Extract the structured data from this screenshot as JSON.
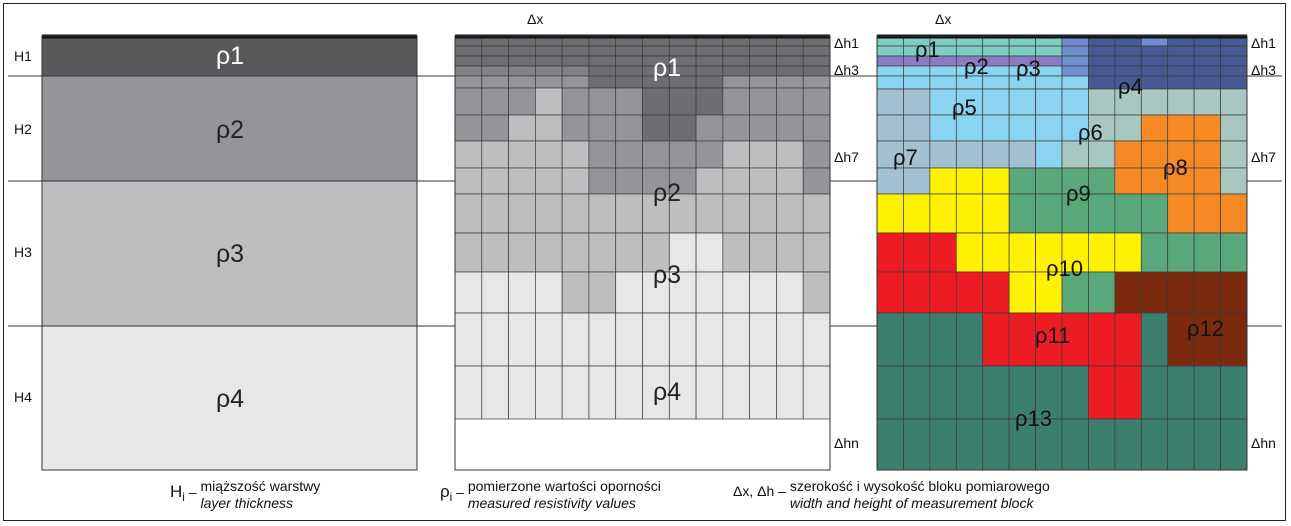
{
  "left_panel": {
    "layer_labels": [
      "H1",
      "H2",
      "H3",
      "H4"
    ],
    "layers": [
      {
        "label": "ρ1",
        "color": "#58595b"
      },
      {
        "label": "ρ2",
        "color": "#939598"
      },
      {
        "label": "ρ3",
        "color": "#bcbec0"
      },
      {
        "label": "ρ4",
        "color": "#e6e7e8"
      }
    ]
  },
  "middle_panel": {
    "top_label": "Δx",
    "right_labels": [
      "Δh1",
      "Δh3",
      "Δh7",
      "Δhn"
    ],
    "value_labels": [
      "ρ1",
      "ρ2",
      "ρ3",
      "ρ4"
    ],
    "palette": {
      "1": "#58595b",
      "2": "#939598",
      "3": "#bcbec0",
      "4": "#e6e7e8",
      "5": "#6d6e71",
      "6": "#808285"
    },
    "grid": [
      "55555555555555",
      "55555555555555",
      "55555555555555",
      "66666555555555",
      "22222555552222",
      "22232225552222",
      "22332225522222",
      "33333222223332",
      "33333222233332",
      "33333333333333",
      "33333333443333",
      "44443344444443",
      "44444444444444",
      "44444444444444"
    ]
  },
  "right_panel": {
    "top_label": "Δx",
    "left_labels": [
      "Δh1",
      "Δh3",
      "Δh7",
      "Δhn"
    ],
    "right_labels": [
      "Δh1",
      "Δh3",
      "Δh7",
      "Δhn"
    ],
    "region_labels": [
      "ρ1",
      "ρ2",
      "ρ3",
      "ρ4",
      "ρ5",
      "ρ6",
      "ρ7",
      "ρ8",
      "ρ9",
      "ρ10",
      "ρ11",
      "ρ12",
      "ρ13"
    ],
    "palette": {
      "A": "#7ecdc3",
      "B": "#8a7cc0",
      "C": "#6f8fd0",
      "D": "#485a94",
      "E": "#8ad4f2",
      "F": "#a7c7c0",
      "G": "#a3c1d3",
      "H": "#f58a25",
      "Y": "#fff200",
      "J": "#58a87a",
      "R": "#ed1c24",
      "K": "#7b2a0e",
      "T": "#3d7f6e"
    },
    "grid": [
      "AAAAAAACDDCDDD",
      "AAAAAAACDDDDDD",
      "BBBBBBBCDDDDDD",
      "EEEEEEECDDDDDD",
      "EEEEEEEEDDDDDD",
      "GGEEEEEEFFFFFF",
      "GGEEEEEEFFHHHF",
      "GGGGGGEFFHHHHF",
      "GGYYYJJJJHHHHF",
      "YYYYYJJJJJJHHH",
      "RRRYYYYYYYJJJJ",
      "RRRRRYYJJKKKKK",
      "TTTTRRRRRRTKKK",
      "TTTTTTTTRRTTTT",
      "TTTTTTTTTTTTTT"
    ]
  },
  "captions": [
    {
      "symbol": "H",
      "subscript": "i",
      "dash": "–",
      "pl": "miąższość warstwy",
      "en": "layer thickness"
    },
    {
      "symbol": "ρ",
      "subscript": "i",
      "dash": "–",
      "pl": "pomierzone wartości oporności",
      "en": "measured resistivity values"
    },
    {
      "symbol": "Δx, Δh",
      "subscript": "",
      "dash": "–",
      "pl": "szerokość i wysokość bloku pomiarowego",
      "en": "width and height of measurement block"
    }
  ]
}
